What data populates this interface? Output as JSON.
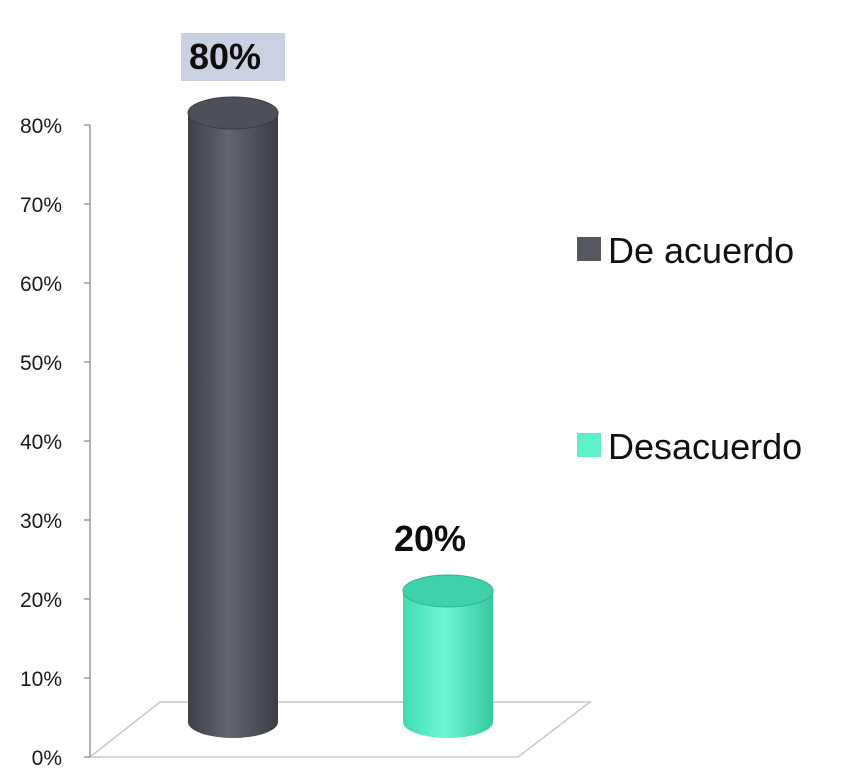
{
  "chart_data": {
    "type": "bar",
    "categories": [
      "De acuerdo",
      "Desacuerdo"
    ],
    "values": [
      80,
      20
    ],
    "value_labels": [
      "80%",
      "20%"
    ],
    "ylim": [
      0,
      80
    ],
    "yticks": [
      "0%",
      "10%",
      "20%",
      "30%",
      "40%",
      "50%",
      "60%",
      "70%",
      "80%"
    ],
    "title": "",
    "xlabel": "",
    "ylabel": "",
    "legend": {
      "placement": "right",
      "entries": [
        {
          "label": "De acuerdo",
          "color": "#55585f"
        },
        {
          "label": "Desacuerdo",
          "color": "#5cf0c8"
        }
      ]
    },
    "colors": [
      "#55585f",
      "#5cf0c8"
    ],
    "highlight_label_color": "#c9d1e3",
    "grid": false,
    "style": "3d-cylinder"
  }
}
